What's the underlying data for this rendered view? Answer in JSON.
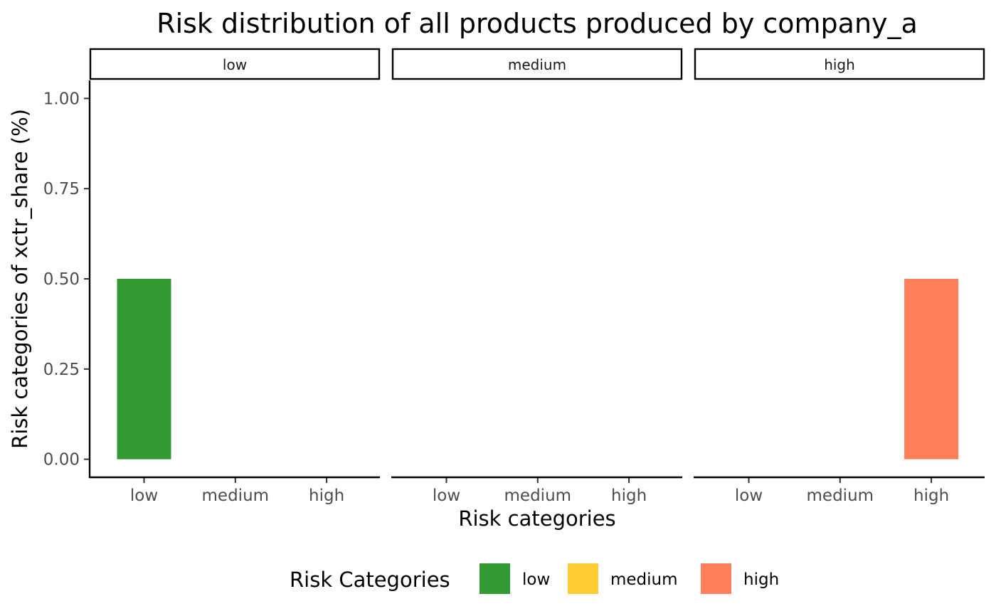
{
  "chart_data": {
    "type": "bar",
    "title": "Risk distribution of all products produced by company_a",
    "xlabel": "Risk categories",
    "ylabel": "Risk categories of xctr_share (%)",
    "facet_by": "risk category",
    "facets": [
      "low",
      "medium",
      "high"
    ],
    "categories": [
      "low",
      "medium",
      "high"
    ],
    "panels": [
      {
        "facet": "low",
        "values": [
          0.5,
          0,
          0
        ]
      },
      {
        "facet": "medium",
        "values": [
          0,
          0,
          0
        ]
      },
      {
        "facet": "high",
        "values": [
          0,
          0,
          0.5
        ]
      }
    ],
    "ylim": [
      -0.05,
      1.05
    ],
    "yticks": [
      0,
      0.25,
      0.5,
      0.75,
      1.0
    ],
    "ytick_labels": [
      "0.00",
      "0.25",
      "0.50",
      "0.75",
      "1.00"
    ],
    "grid": false,
    "legend": {
      "title": "Risk Categories",
      "placement": "bottom",
      "items": [
        {
          "label": "low",
          "color": "#339933"
        },
        {
          "label": "medium",
          "color": "#FFCC33"
        },
        {
          "label": "high",
          "color": "#FF7F5B"
        }
      ]
    },
    "colors": {
      "low": "#339933",
      "medium": "#FFCC33",
      "high": "#FF7F5B"
    }
  }
}
